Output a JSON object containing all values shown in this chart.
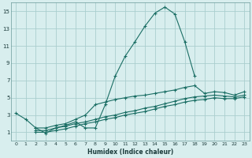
{
  "xlabel": "Humidex (Indice chaleur)",
  "ylabel": "",
  "bg_color": "#d8eeee",
  "grid_color": "#aacece",
  "line_color": "#1a6e64",
  "xlim": [
    -0.5,
    23.5
  ],
  "ylim": [
    0,
    16
  ],
  "xticks": [
    0,
    1,
    2,
    3,
    4,
    5,
    6,
    7,
    8,
    9,
    10,
    11,
    12,
    13,
    14,
    15,
    16,
    17,
    18,
    19,
    20,
    21,
    22,
    23
  ],
  "yticks": [
    1,
    3,
    5,
    7,
    9,
    11,
    13,
    15
  ],
  "series": [
    {
      "x": [
        0,
        1,
        2,
        3,
        4,
        5,
        6,
        7,
        8,
        9,
        10,
        11,
        12,
        13,
        14,
        15,
        16,
        17,
        18
      ],
      "y": [
        3.2,
        2.5,
        1.5,
        0.9,
        1.5,
        1.8,
        2.2,
        1.5,
        1.5,
        4.2,
        7.5,
        9.8,
        11.5,
        13.3,
        14.8,
        15.5,
        14.7,
        11.5,
        7.5
      ]
    },
    {
      "x": [
        2,
        3,
        4,
        5,
        6,
        7,
        8,
        9,
        10,
        11,
        12,
        13,
        14,
        15,
        16,
        17,
        18,
        19,
        20,
        21,
        22,
        23
      ],
      "y": [
        1.5,
        1.5,
        1.8,
        2.0,
        2.5,
        3.0,
        4.2,
        4.5,
        4.8,
        5.0,
        5.2,
        5.3,
        5.5,
        5.7,
        5.9,
        6.2,
        6.4,
        5.5,
        5.7,
        5.6,
        5.3,
        5.7
      ]
    },
    {
      "x": [
        2,
        3,
        4,
        5,
        6,
        7,
        8,
        9,
        10,
        11,
        12,
        13,
        14,
        15,
        16,
        17,
        18,
        19,
        20,
        21,
        22,
        23
      ],
      "y": [
        1.2,
        1.2,
        1.5,
        1.7,
        2.0,
        2.2,
        2.5,
        2.8,
        3.0,
        3.3,
        3.5,
        3.8,
        4.0,
        4.3,
        4.6,
        4.9,
        5.1,
        5.2,
        5.3,
        5.2,
        5.1,
        5.3
      ]
    },
    {
      "x": [
        2,
        3,
        4,
        5,
        6,
        7,
        8,
        9,
        10,
        11,
        12,
        13,
        14,
        15,
        16,
        17,
        18,
        19,
        20,
        21,
        22,
        23
      ],
      "y": [
        1.0,
        1.0,
        1.2,
        1.4,
        1.7,
        2.0,
        2.2,
        2.5,
        2.7,
        3.0,
        3.2,
        3.4,
        3.7,
        4.0,
        4.2,
        4.5,
        4.7,
        4.8,
        5.0,
        4.9,
        4.9,
        5.1
      ]
    }
  ]
}
